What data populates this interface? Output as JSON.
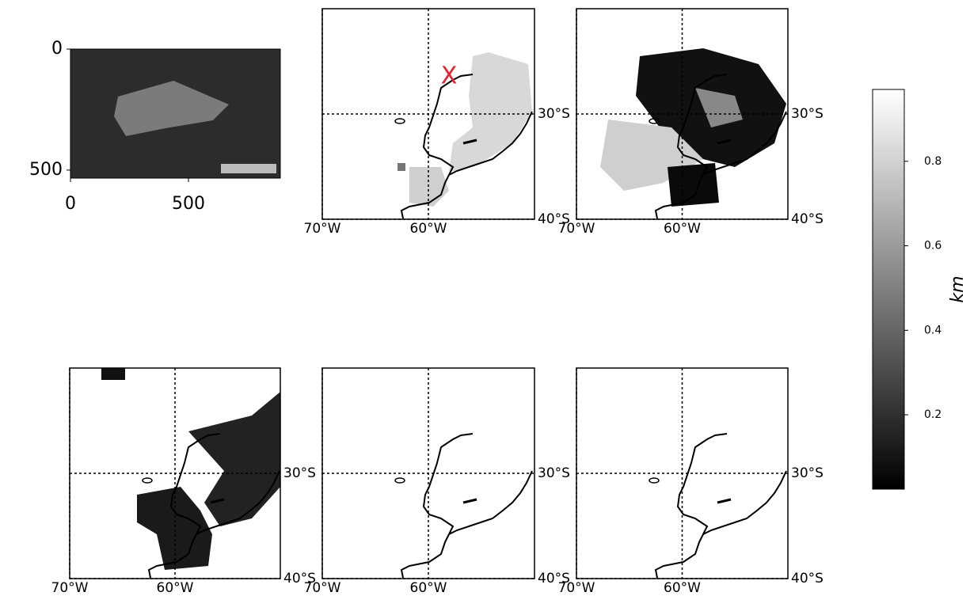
{
  "chart_data": [
    {
      "type": "image",
      "xlim": [
        0,
        889
      ],
      "ylim": [
        533,
        0
      ],
      "xticks": [
        0,
        500
      ],
      "yticks": [
        0,
        500
      ]
    },
    {
      "type": "map",
      "xlim": [
        -70,
        -50
      ],
      "ylim": [
        -40,
        -20
      ],
      "xticks": [
        {
          "value": -70,
          "label": "70°W"
        },
        {
          "value": -60,
          "label": "60°W"
        }
      ],
      "yticks": [
        {
          "value": -30,
          "label": "30°S"
        },
        {
          "value": -40,
          "label": "40°S"
        }
      ],
      "annotation": "X"
    },
    {
      "type": "map",
      "xlim": [
        -70,
        -50
      ],
      "ylim": [
        -40,
        -20
      ],
      "xticks": [
        {
          "value": -70,
          "label": "70°W"
        },
        {
          "value": -60,
          "label": "60°W"
        }
      ],
      "yticks": [
        {
          "value": -30,
          "label": "30°S"
        },
        {
          "value": -40,
          "label": "40°S"
        }
      ]
    },
    {
      "type": "map",
      "xlim": [
        -70,
        -50
      ],
      "ylim": [
        -40,
        -20
      ],
      "xticks": [
        {
          "value": -70,
          "label": "70°W"
        },
        {
          "value": -60,
          "label": "60°W"
        }
      ],
      "yticks": [
        {
          "value": -30,
          "label": "30°S"
        },
        {
          "value": -40,
          "label": "40°S"
        }
      ]
    },
    {
      "type": "map",
      "xlim": [
        -70,
        -50
      ],
      "ylim": [
        -40,
        -20
      ],
      "xticks": [
        {
          "value": -70,
          "label": "70°W"
        },
        {
          "value": -60,
          "label": "60°W"
        }
      ],
      "yticks": [
        {
          "value": -30,
          "label": "30°S"
        },
        {
          "value": -40,
          "label": "40°S"
        }
      ]
    },
    {
      "type": "map",
      "xlim": [
        -70,
        -50
      ],
      "ylim": [
        -40,
        -20
      ],
      "xticks": [
        {
          "value": -70,
          "label": "70°W"
        },
        {
          "value": -60,
          "label": "60°W"
        }
      ],
      "yticks": [
        {
          "value": -30,
          "label": "30°S"
        },
        {
          "value": -40,
          "label": "40°S"
        }
      ]
    },
    {
      "type": "colorbar",
      "label": "km",
      "clim": [
        0.024,
        0.97
      ],
      "ticks": [
        0.2,
        0.4,
        0.6,
        0.8
      ]
    }
  ]
}
